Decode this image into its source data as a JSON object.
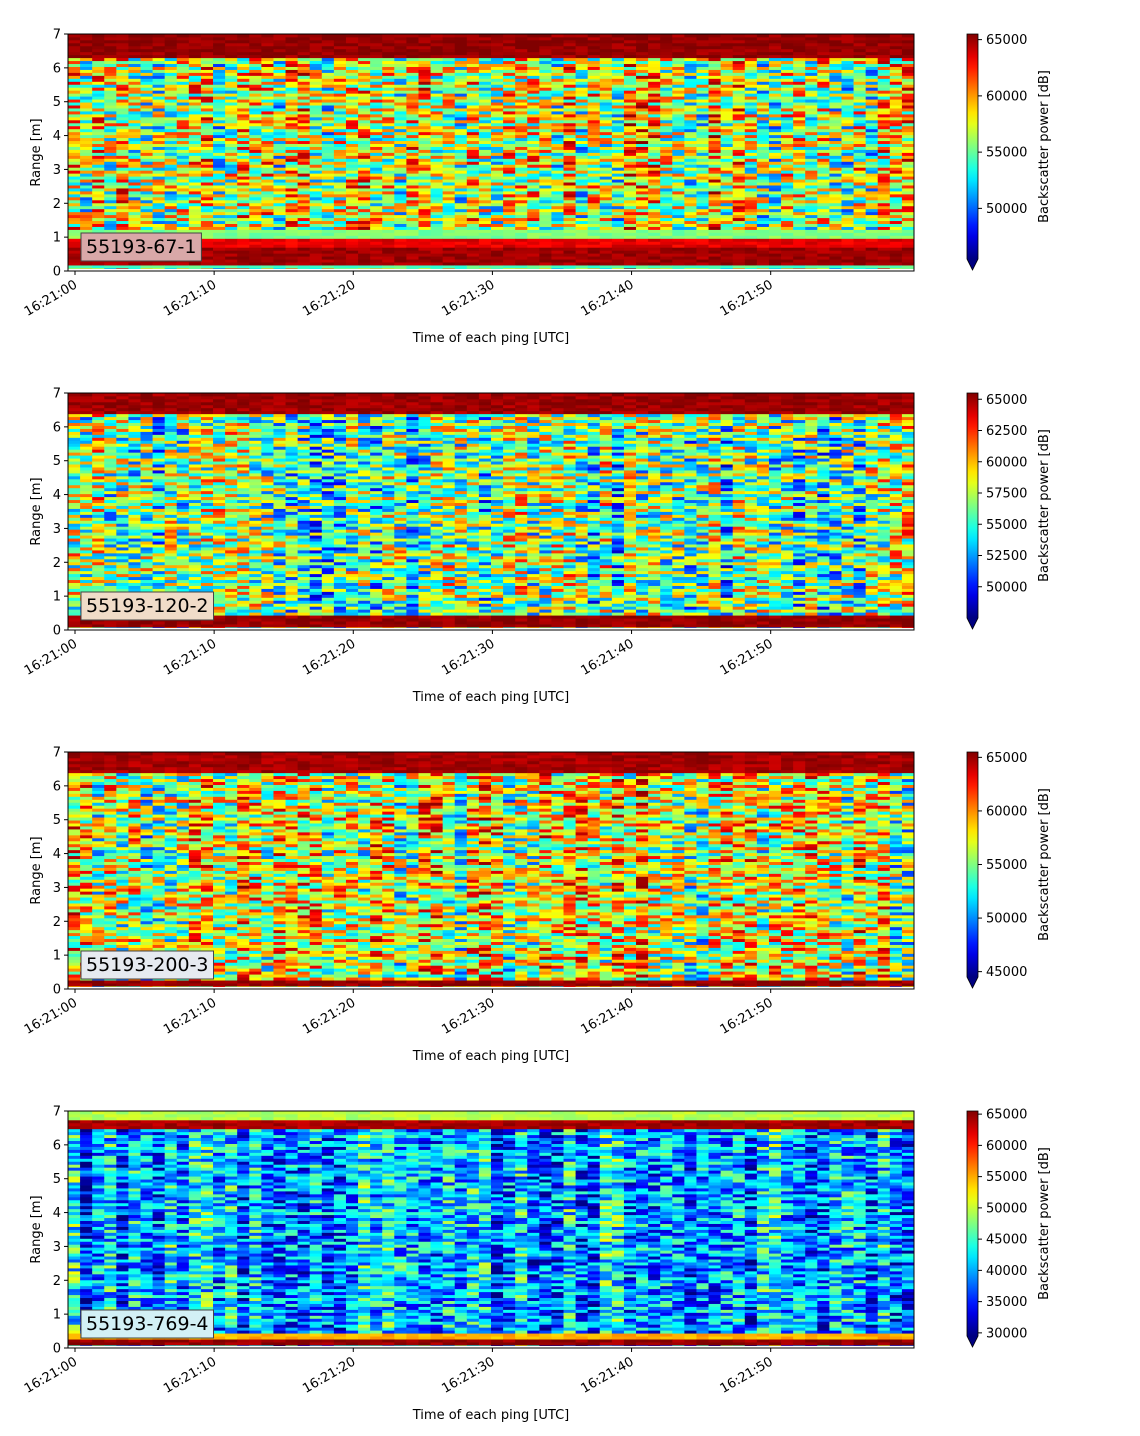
{
  "chart_data": [
    {
      "type": "heatmap",
      "station_label": "55193-67-1",
      "label_box_color": "#d9a8a8",
      "xlabel": "Time of each ping [UTC]",
      "ylabel": "Range [m]",
      "colorbar_label": "Backscatter power [dB]",
      "colormap": "jet",
      "colorbar_extend": "min",
      "color_range": [
        45500,
        65500
      ],
      "colorbar_ticks": [
        50000,
        55000,
        60000,
        65000
      ],
      "colorbar_tick_labels": [
        "50000",
        "55000",
        "60000",
        "65000"
      ],
      "ylim": [
        0,
        7
      ],
      "yticks": [
        0,
        1,
        2,
        3,
        4,
        5,
        6,
        7
      ],
      "ytick_labels": [
        "0",
        "1",
        "2",
        "3",
        "4",
        "5",
        "6",
        "7"
      ],
      "x_range": [
        "16:21:00",
        "16:21:59"
      ],
      "xticks": [
        "16:21:00",
        "16:21:10",
        "16:21:20",
        "16:21:30",
        "16:21:40",
        "16:21:50"
      ],
      "bands": [
        {
          "range": [
            0.1,
            0.2
          ],
          "level": 0.45
        },
        {
          "range": [
            0.2,
            0.7
          ],
          "level": 0.97
        },
        {
          "range": [
            0.7,
            1.0
          ],
          "level": 0.9
        },
        {
          "range": [
            1.0,
            1.2
          ],
          "level": 0.5
        },
        {
          "range": [
            6.3,
            7.0
          ],
          "level": 0.98
        }
      ],
      "background_mean": 0.58,
      "background_spread": 0.3
    },
    {
      "type": "heatmap",
      "station_label": "55193-120-2",
      "label_box_color": "#f0dcc8",
      "xlabel": "Time of each ping [UTC]",
      "ylabel": "Range [m]",
      "colorbar_label": "Backscatter power [dB]",
      "colormap": "jet",
      "colorbar_extend": "min",
      "color_range": [
        47500,
        65500
      ],
      "colorbar_ticks": [
        50000,
        52500,
        55000,
        57500,
        60000,
        62500,
        65000
      ],
      "colorbar_tick_labels": [
        "50000",
        "52500",
        "55000",
        "57500",
        "60000",
        "62500",
        "65000"
      ],
      "ylim": [
        0,
        7
      ],
      "yticks": [
        0,
        1,
        2,
        3,
        4,
        5,
        6,
        7
      ],
      "ytick_labels": [
        "0",
        "1",
        "2",
        "3",
        "4",
        "5",
        "6",
        "7"
      ],
      "x_range": [
        "16:21:00",
        "16:21:59"
      ],
      "xticks": [
        "16:21:00",
        "16:21:10",
        "16:21:20",
        "16:21:30",
        "16:21:40",
        "16:21:50"
      ],
      "bands": [
        {
          "range": [
            0.05,
            0.45
          ],
          "level": 0.98
        },
        {
          "range": [
            6.4,
            7.0
          ],
          "level": 0.97
        }
      ],
      "background_mean": 0.48,
      "background_spread": 0.3
    },
    {
      "type": "heatmap",
      "station_label": "55193-200-3",
      "label_box_color": "#e6eaf0",
      "xlabel": "Time of each ping [UTC]",
      "ylabel": "Range [m]",
      "colorbar_label": "Backscatter power [dB]",
      "colormap": "jet",
      "colorbar_extend": "min",
      "color_range": [
        44500,
        65500
      ],
      "colorbar_ticks": [
        45000,
        50000,
        55000,
        60000,
        65000
      ],
      "colorbar_tick_labels": [
        "45000",
        "50000",
        "55000",
        "60000",
        "65000"
      ],
      "ylim": [
        0,
        7
      ],
      "yticks": [
        0,
        1,
        2,
        3,
        4,
        5,
        6,
        7
      ],
      "ytick_labels": [
        "0",
        "1",
        "2",
        "3",
        "4",
        "5",
        "6",
        "7"
      ],
      "x_range": [
        "16:21:00",
        "16:21:59"
      ],
      "xticks": [
        "16:21:00",
        "16:21:10",
        "16:21:20",
        "16:21:30",
        "16:21:40",
        "16:21:50"
      ],
      "bands": [
        {
          "range": [
            0.05,
            0.3
          ],
          "level": 0.98
        },
        {
          "range": [
            6.4,
            7.0
          ],
          "level": 0.96
        }
      ],
      "background_mean": 0.58,
      "background_spread": 0.3
    },
    {
      "type": "heatmap",
      "station_label": "55193-769-4",
      "label_box_color": "#d2f0f5",
      "xlabel": "Time of each ping [UTC]",
      "ylabel": "Range [m]",
      "colorbar_label": "Backscatter power [dB]",
      "colormap": "jet",
      "colorbar_extend": "min",
      "color_range": [
        29500,
        65500
      ],
      "colorbar_ticks": [
        30000,
        35000,
        40000,
        45000,
        50000,
        55000,
        60000,
        65000
      ],
      "colorbar_tick_labels": [
        "30000",
        "35000",
        "40000",
        "45000",
        "50000",
        "55000",
        "60000",
        "65000"
      ],
      "ylim": [
        0,
        7
      ],
      "yticks": [
        0,
        1,
        2,
        3,
        4,
        5,
        6,
        7
      ],
      "ytick_labels": [
        "0",
        "1",
        "2",
        "3",
        "4",
        "5",
        "6",
        "7"
      ],
      "x_range": [
        "16:21:00",
        "16:21:59"
      ],
      "xticks": [
        "16:21:00",
        "16:21:10",
        "16:21:20",
        "16:21:30",
        "16:21:40",
        "16:21:50"
      ],
      "bands": [
        {
          "range": [
            0.1,
            0.3
          ],
          "level": 0.98
        },
        {
          "range": [
            0.3,
            0.4
          ],
          "level": 0.7
        },
        {
          "range": [
            6.5,
            6.7
          ],
          "level": 0.96
        },
        {
          "range": [
            6.7,
            7.0
          ],
          "level": 0.55
        }
      ],
      "background_mean": 0.3,
      "background_spread": 0.22
    }
  ]
}
